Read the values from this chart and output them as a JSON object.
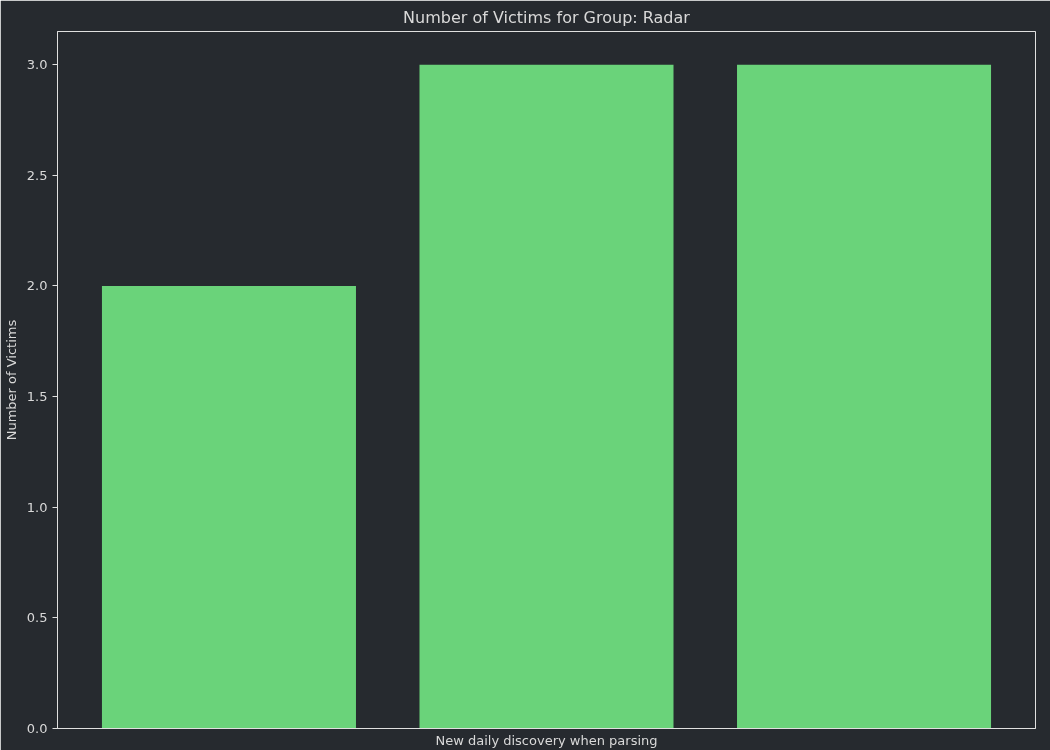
{
  "chart_data": {
    "type": "bar",
    "title": "Number of Victims for Group: Radar",
    "xlabel": "New daily discovery when parsing",
    "ylabel": "Number of Victims",
    "categories": [
      null,
      null,
      null
    ],
    "values": [
      2,
      3,
      3
    ],
    "color": "#6ad37a",
    "ylim": [
      0,
      3.15
    ],
    "yticks": [
      {
        "value": 0,
        "label": "0.0"
      },
      0.5,
      {
        "value": 1,
        "label": "1.0"
      },
      1.5,
      {
        "value": 2,
        "label": "2.0"
      },
      2.5,
      {
        "value": 3,
        "label": "3.0"
      }
    ],
    "grid": false
  }
}
